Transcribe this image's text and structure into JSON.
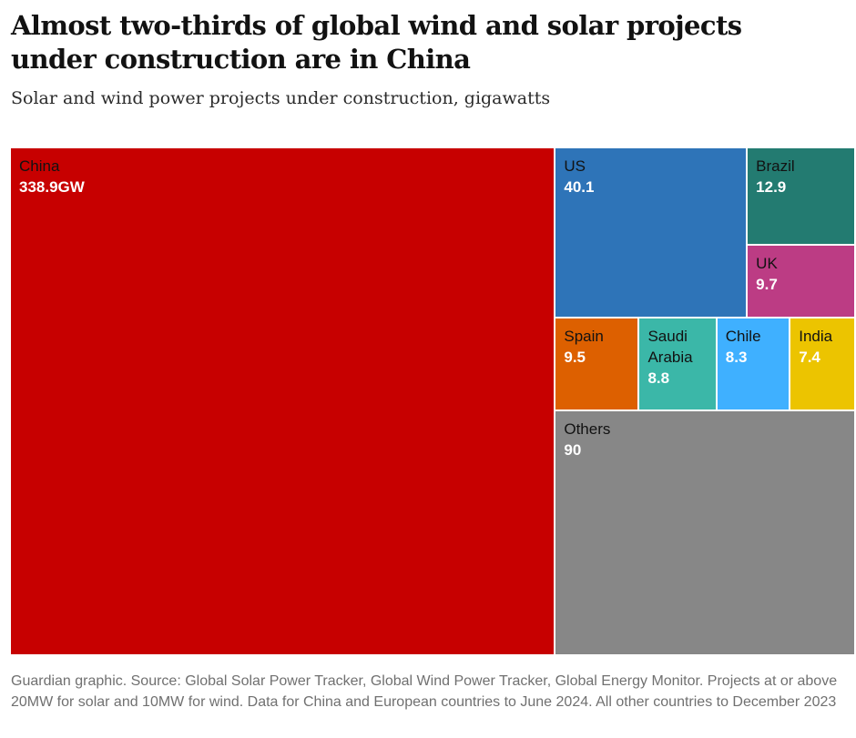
{
  "header": {
    "title": "Almost two-thirds of global wind and solar projects under construction are in China",
    "subtitle": "Solar and wind power projects under construction, gigawatts"
  },
  "chart_data": {
    "type": "treemap",
    "title": "Almost two-thirds of global wind and solar projects under construction are in China",
    "subtitle": "Solar and wind power projects under construction, gigawatts",
    "unit": "gigawatts",
    "items": [
      {
        "name": "China",
        "value": 338.9,
        "label": "338.9GW",
        "color": "#c70000"
      },
      {
        "name": "US",
        "value": 40.1,
        "label": "40.1",
        "color": "#2e74b8"
      },
      {
        "name": "Brazil",
        "value": 12.9,
        "label": "12.9",
        "color": "#237b71"
      },
      {
        "name": "UK",
        "value": 9.7,
        "label": "9.7",
        "color": "#bc3c84"
      },
      {
        "name": "Spain",
        "value": 9.5,
        "label": "9.5",
        "color": "#dd6000"
      },
      {
        "name": "Saudi Arabia",
        "value": 8.8,
        "label": "8.8",
        "color": "#3bb7a8"
      },
      {
        "name": "Chile",
        "value": 8.3,
        "label": "8.3",
        "color": "#3fb0ff"
      },
      {
        "name": "India",
        "value": 7.4,
        "label": "7.4",
        "color": "#ecc400"
      },
      {
        "name": "Others",
        "value": 90,
        "label": "90",
        "color": "#878787"
      }
    ]
  },
  "footer": {
    "source": "Guardian graphic. Source: Global Solar Power Tracker, Global Wind Power Tracker, Global Energy Monitor. Projects at or above 20MW for solar and 10MW for wind. Data for China and European countries to June 2024. All other countries to December 2023"
  }
}
